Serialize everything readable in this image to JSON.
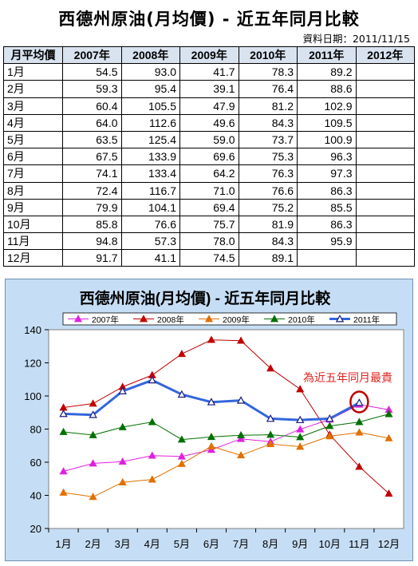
{
  "page": {
    "title": "西德州原油(月均價) - 近五年同月比較",
    "date_label": "資料日期：2011/11/15"
  },
  "table": {
    "corner": "月平均價",
    "columns": [
      "2007年",
      "2008年",
      "2009年",
      "2010年",
      "2011年",
      "2012年"
    ],
    "rows": [
      {
        "month": "1月",
        "values": [
          "54.5",
          "93.0",
          "41.7",
          "78.3",
          "89.2",
          ""
        ]
      },
      {
        "month": "2月",
        "values": [
          "59.3",
          "95.4",
          "39.1",
          "76.4",
          "88.6",
          ""
        ]
      },
      {
        "month": "3月",
        "values": [
          "60.4",
          "105.5",
          "47.9",
          "81.2",
          "102.9",
          ""
        ]
      },
      {
        "month": "4月",
        "values": [
          "64.0",
          "112.6",
          "49.6",
          "84.3",
          "109.5",
          ""
        ]
      },
      {
        "month": "5月",
        "values": [
          "63.5",
          "125.4",
          "59.0",
          "73.7",
          "100.9",
          ""
        ]
      },
      {
        "month": "6月",
        "values": [
          "67.5",
          "133.9",
          "69.6",
          "75.3",
          "96.3",
          ""
        ]
      },
      {
        "month": "7月",
        "values": [
          "74.1",
          "133.4",
          "64.2",
          "76.3",
          "97.3",
          ""
        ]
      },
      {
        "month": "8月",
        "values": [
          "72.4",
          "116.7",
          "71.0",
          "76.6",
          "86.3",
          ""
        ]
      },
      {
        "month": "9月",
        "values": [
          "79.9",
          "104.1",
          "69.4",
          "75.2",
          "85.5",
          ""
        ]
      },
      {
        "month": "10月",
        "values": [
          "85.8",
          "76.6",
          "75.7",
          "81.9",
          "86.3",
          ""
        ]
      },
      {
        "month": "11月",
        "values": [
          "94.8",
          "57.3",
          "78.0",
          "84.3",
          "95.9",
          ""
        ]
      },
      {
        "month": "12月",
        "values": [
          "91.7",
          "41.1",
          "74.5",
          "89.1",
          "",
          ""
        ]
      }
    ]
  },
  "chart_data": {
    "type": "line",
    "title": "西德州原油(月均價) - 近五年同月比較",
    "categories": [
      "1月",
      "2月",
      "3月",
      "4月",
      "5月",
      "6月",
      "7月",
      "8月",
      "9月",
      "10月",
      "11月",
      "12月"
    ],
    "ylim": [
      20,
      140
    ],
    "yticks": [
      20,
      40,
      60,
      80,
      100,
      120,
      140
    ],
    "grid": false,
    "legend_position": "top",
    "annotation": "為近五年同月最貴",
    "annotation_color": "#e02020",
    "series": [
      {
        "name": "2007年",
        "color": "#e020e0",
        "marker": "triangle",
        "values": [
          54.5,
          59.3,
          60.4,
          64.0,
          63.5,
          67.5,
          74.1,
          72.4,
          79.9,
          85.8,
          94.8,
          91.7
        ]
      },
      {
        "name": "2008年",
        "color": "#c00000",
        "marker": "triangle",
        "values": [
          93.0,
          95.4,
          105.5,
          112.6,
          125.4,
          133.9,
          133.4,
          116.7,
          104.1,
          76.6,
          57.3,
          41.1
        ]
      },
      {
        "name": "2009年",
        "color": "#e07000",
        "marker": "triangle",
        "values": [
          41.7,
          39.1,
          47.9,
          49.6,
          59.0,
          69.6,
          64.2,
          71.0,
          69.4,
          75.7,
          78.0,
          74.5
        ]
      },
      {
        "name": "2010年",
        "color": "#007000",
        "marker": "triangle",
        "values": [
          78.3,
          76.4,
          81.2,
          84.3,
          73.7,
          75.3,
          76.3,
          76.6,
          75.2,
          81.9,
          84.3,
          89.1
        ]
      },
      {
        "name": "2011年",
        "color": "#3366dd",
        "marker": "triangle-open",
        "values": [
          89.2,
          88.6,
          102.9,
          109.5,
          100.9,
          96.3,
          97.3,
          86.3,
          85.5,
          86.3,
          95.9,
          null
        ]
      }
    ]
  }
}
